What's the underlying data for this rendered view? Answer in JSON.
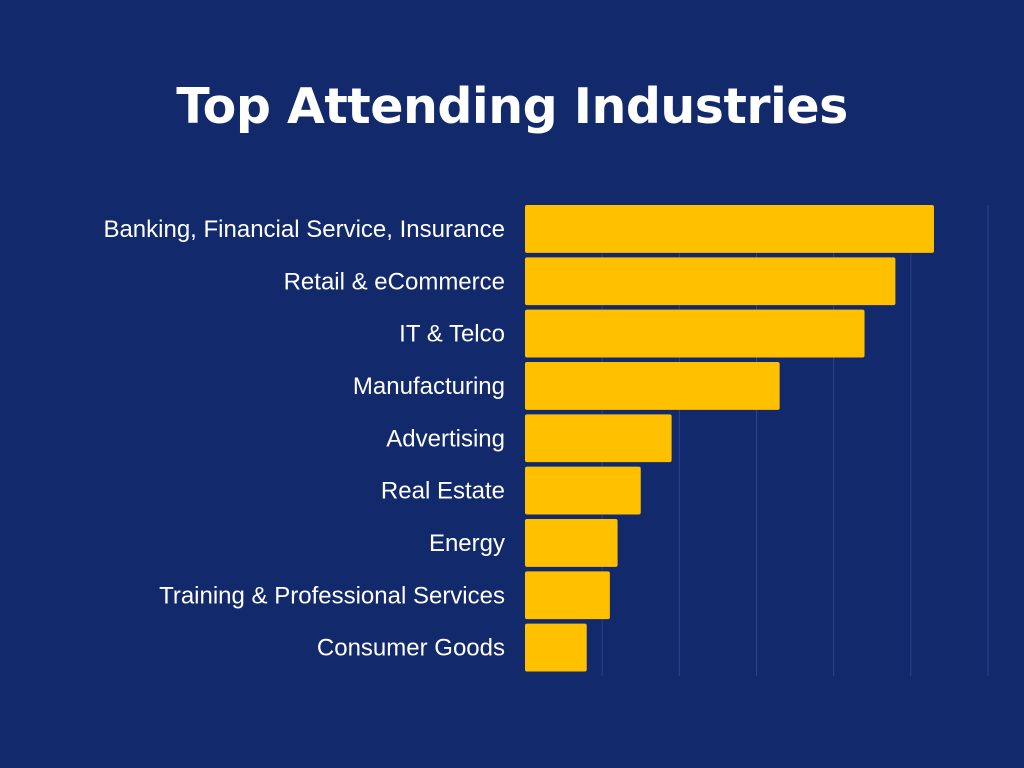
{
  "chart_data": {
    "type": "bar",
    "orientation": "horizontal",
    "title": "Top Attending Industries",
    "xlabel": "",
    "ylabel": "",
    "categories": [
      "Banking, Financial Service, Insurance",
      "Retail & eCommerce",
      "IT & Telco",
      "Manufacturing",
      "Advertising",
      "Real Estate",
      "Energy",
      "Training & Professional Services",
      "Consumer Goods"
    ],
    "values": [
      26.5,
      24,
      22,
      16.5,
      9.5,
      7.5,
      6,
      5.5,
      4
    ],
    "xlim": [
      0,
      30
    ],
    "gridlines": [
      0,
      5,
      10,
      15,
      20,
      25,
      30
    ],
    "grid": true,
    "legend": "none",
    "colors": {
      "background": "#12296b",
      "bar": "#ffc000",
      "grid": "#2c4488",
      "text": "#ffffff"
    }
  }
}
